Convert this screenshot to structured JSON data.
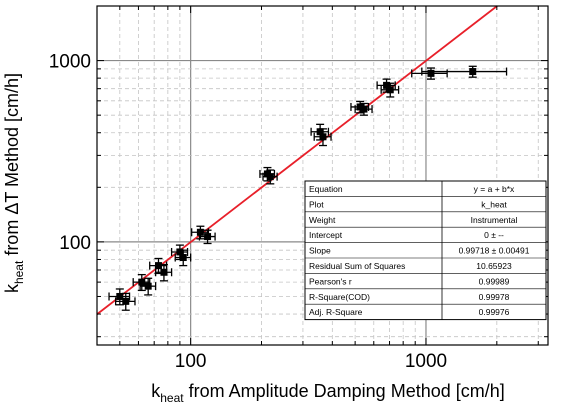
{
  "chart_data": {
    "type": "scatter",
    "title": "",
    "xlabel": {
      "main": "k",
      "sub": "heat",
      "rest": " from Amplitude Damping Method [cm/h]"
    },
    "ylabel": {
      "main": "k",
      "sub": "heat",
      "rest": " from ΔT Method [cm/h]"
    },
    "xscale": "log",
    "yscale": "log",
    "xlim": [
      40,
      3300
    ],
    "ylim": [
      27,
      2000
    ],
    "x_ticks": [
      100,
      1000
    ],
    "x_tick_labels": [
      "100",
      "1000"
    ],
    "y_ticks": [
      100,
      1000
    ],
    "y_tick_labels": [
      "100",
      "1000"
    ],
    "grid": true,
    "points": [
      {
        "x": 50,
        "y": 50,
        "xerr": 5,
        "yerr": 5
      },
      {
        "x": 53,
        "y": 47,
        "xerr": 5,
        "yerr": 5
      },
      {
        "x": 62,
        "y": 60,
        "xerr": 5,
        "yerr": 6
      },
      {
        "x": 66,
        "y": 57,
        "xerr": 5,
        "yerr": 6
      },
      {
        "x": 73,
        "y": 74,
        "xerr": 6,
        "yerr": 7
      },
      {
        "x": 77,
        "y": 68,
        "xerr": 6,
        "yerr": 7
      },
      {
        "x": 90,
        "y": 88,
        "xerr": 7,
        "yerr": 8
      },
      {
        "x": 93,
        "y": 82,
        "xerr": 7,
        "yerr": 8
      },
      {
        "x": 110,
        "y": 113,
        "xerr": 9,
        "yerr": 9
      },
      {
        "x": 118,
        "y": 107,
        "xerr": 9,
        "yerr": 9
      },
      {
        "x": 212,
        "y": 237,
        "xerr": 15,
        "yerr": 20
      },
      {
        "x": 218,
        "y": 229,
        "xerr": 15,
        "yerr": 20
      },
      {
        "x": 355,
        "y": 405,
        "xerr": 30,
        "yerr": 40
      },
      {
        "x": 365,
        "y": 380,
        "xerr": 30,
        "yerr": 40
      },
      {
        "x": 525,
        "y": 555,
        "xerr": 45,
        "yerr": 40
      },
      {
        "x": 545,
        "y": 540,
        "xerr": 45,
        "yerr": 40
      },
      {
        "x": 680,
        "y": 730,
        "xerr": 60,
        "yerr": 60
      },
      {
        "x": 705,
        "y": 690,
        "xerr": 60,
        "yerr": 60
      },
      {
        "x": 1050,
        "y": 850,
        "xerr": 180,
        "yerr": 60
      },
      {
        "x": 1580,
        "y": 870,
        "xerr": 620,
        "yerr": 60
      }
    ],
    "fit_line": {
      "slope": 0.99718,
      "intercept": 0,
      "color": "#e8202a"
    },
    "marker_color": "#000000",
    "table": {
      "rows": [
        {
          "label": "Equation",
          "value": "y = a + b*x"
        },
        {
          "label": "Plot",
          "value": "k_heat"
        },
        {
          "label": "Weight",
          "value": "Instrumental"
        },
        {
          "label": "Intercept",
          "value": "0 ± --"
        },
        {
          "label": "Slope",
          "value": "0.99718 ± 0.00491"
        },
        {
          "label": "Residual Sum of Squares",
          "value": "10.65923"
        },
        {
          "label": "Pearson's r",
          "value": "0.99989"
        },
        {
          "label": "R-Square(COD)",
          "value": "0.99978"
        },
        {
          "label": "Adj. R-Square",
          "value": "0.99976"
        }
      ]
    }
  }
}
